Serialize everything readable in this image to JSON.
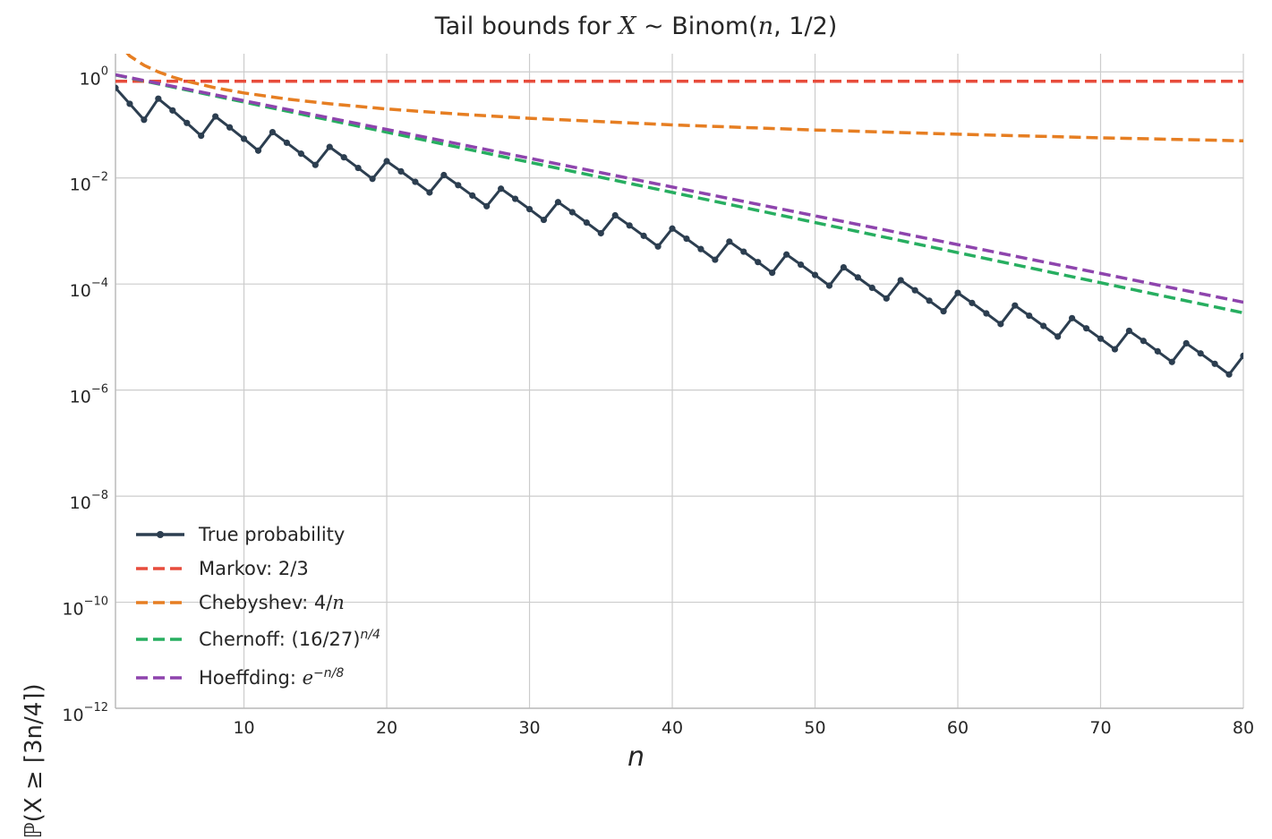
{
  "chart_data": {
    "type": "line",
    "title": {
      "prefix": "Tail bounds for ",
      "var": "X",
      "mid": " ~ Binom(",
      "n": "n",
      "suffix": ", 1/2)"
    },
    "xlabel": "n",
    "ylabel": "ℙ(X ≥ ⌈3n/4⌉)",
    "xlim": [
      1,
      80
    ],
    "ylim": [
      1e-12,
      2.2
    ],
    "yscale": "log",
    "grid": true,
    "legend_position": "bottom-left",
    "x_ticks": [
      "10",
      "20",
      "30",
      "40",
      "50",
      "60",
      "70",
      "80"
    ],
    "x_tick_values": [
      10,
      20,
      30,
      40,
      50,
      60,
      70,
      80
    ],
    "y_tick_exponents": [
      "0",
      "−2",
      "−4",
      "−6",
      "−8",
      "−10",
      "−12"
    ],
    "y_tick_values": [
      0,
      -2,
      -4,
      -6,
      -8,
      -10,
      -12
    ],
    "y_tick_base": "10",
    "series": [
      {
        "name": "True probability",
        "legend": {
          "text": "True probability",
          "sup": ""
        },
        "color": "#2c3e50",
        "style": "solid-markers",
        "x": [
          1,
          2,
          3,
          4,
          5,
          6,
          7,
          8,
          9,
          10,
          11,
          12,
          13,
          14,
          15,
          16,
          17,
          18,
          19,
          20,
          21,
          22,
          23,
          24,
          25,
          26,
          27,
          28,
          29,
          30,
          31,
          32,
          33,
          34,
          35,
          36,
          37,
          38,
          39,
          40,
          41,
          42,
          43,
          44,
          45,
          46,
          47,
          48,
          49,
          50,
          51,
          52,
          53,
          54,
          55,
          56,
          57,
          58,
          59,
          60,
          61,
          62,
          63,
          64,
          65,
          66,
          67,
          68,
          69,
          70,
          71,
          72,
          73,
          74,
          75,
          76,
          77,
          78,
          79,
          80
        ],
        "y": [
          0.5,
          0.25,
          0.125,
          0.3125,
          0.1875,
          0.109,
          0.0625,
          0.1445,
          0.0898,
          0.0547,
          0.0327,
          0.073,
          0.0461,
          0.0287,
          0.0176,
          0.0384,
          0.0245,
          0.01544,
          0.00961,
          0.0207,
          0.0133,
          0.00845,
          0.00531,
          0.01133,
          0.00731,
          0.00466,
          0.00293,
          0.00627,
          0.00404,
          0.00258,
          0.00162,
          0.0035,
          0.00226,
          0.00144,
          0.000907,
          0.00197,
          0.00127,
          0.00081,
          0.00051,
          0.00111,
          0.000716,
          0.000456,
          0.000287,
          0.000631,
          0.000407,
          0.000259,
          0.000163,
          0.00036,
          0.000232,
          0.000148,
          9.32e-05,
          0.000206,
          0.000133,
          8.47e-05,
          5.34e-05,
          0.000118,
          7.61e-05,
          4.85e-05,
          3.06e-05,
          6.8e-05,
          4.39e-05,
          2.79e-05,
          1.76e-05,
          3.93e-05,
          2.53e-05,
          1.62e-05,
          1.02e-05,
          2.27e-05,
          1.46e-05,
          9.33e-06,
          5.88e-06,
          1.31e-05,
          8.45e-06,
          5.38e-06,
          3.39e-06,
          7.62e-06,
          4.91e-06,
          3.13e-06,
          1.97e-06,
          4.43e-06
        ]
      },
      {
        "name": "Markov: 2/3",
        "legend": {
          "text": "Markov: 2/3",
          "sup": ""
        },
        "color": "#e74c3c",
        "style": "dashed",
        "x": [
          1,
          80
        ],
        "y": [
          0.6667,
          0.6667
        ]
      },
      {
        "name": "Chebyshev: 4/n",
        "legend": {
          "text": "Chebyshev: 4/",
          "italic": "n",
          "sup": ""
        },
        "color": "#e67e22",
        "style": "dashed",
        "x": [
          1,
          2,
          3,
          4,
          5,
          6,
          8,
          10,
          13,
          16,
          20,
          25,
          30,
          40,
          50,
          60,
          70,
          80
        ],
        "y": [
          4,
          2,
          1.3333,
          1,
          0.8,
          0.6667,
          0.5,
          0.4,
          0.3077,
          0.25,
          0.2,
          0.16,
          0.1333,
          0.1,
          0.08,
          0.0667,
          0.0571,
          0.05
        ]
      },
      {
        "name": "Chernoff: (16/27)^(n/4)",
        "legend": {
          "text": "Chernoff: (16/27)",
          "sup": "n/4"
        },
        "color": "#27ae60",
        "style": "dashed",
        "x": [
          1,
          80
        ],
        "y": [
          0.877,
          2.86e-05
        ]
      },
      {
        "name": "Hoeffding: e^(−n/8)",
        "legend": {
          "text": "Hoeffding: ",
          "italic": "e",
          "sup": "−n/8"
        },
        "color": "#8e44ad",
        "style": "dashed",
        "x": [
          1,
          80
        ],
        "y": [
          0.882,
          4.54e-05
        ]
      }
    ]
  }
}
